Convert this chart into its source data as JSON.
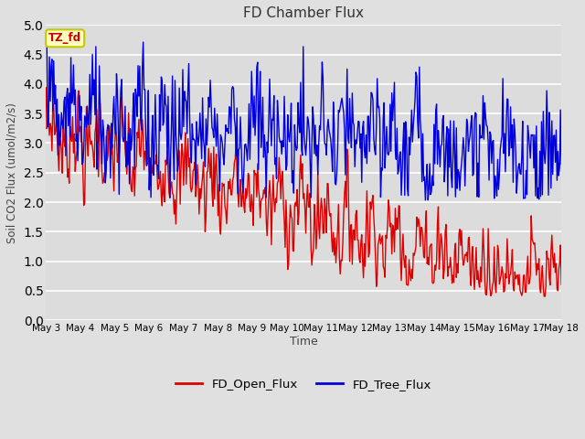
{
  "title": "FD Chamber Flux",
  "xlabel": "Time",
  "ylabel": "Soil CO2 Flux (umol/m2/s)",
  "ylim": [
    0.0,
    5.0
  ],
  "yticks": [
    0.0,
    0.5,
    1.0,
    1.5,
    2.0,
    2.5,
    3.0,
    3.5,
    4.0,
    4.5,
    5.0
  ],
  "background_color": "#e0e0e0",
  "plot_bg_color": "#dcdcdc",
  "grid_color": "white",
  "red_color": "#dd0000",
  "blue_color": "#0000dd",
  "legend_labels": [
    "FD_Open_Flux",
    "FD_Tree_Flux"
  ],
  "annotation_text": "TZ_fd",
  "annotation_bg": "#ffffc0",
  "annotation_border": "#c8c800",
  "x_tick_labels": [
    "May 3",
    "May 4",
    "May 5",
    "May 6",
    "May 7",
    "May 8",
    "May 9",
    "May 10",
    "May 11",
    "May 12",
    "May 13",
    "May 14",
    "May 15",
    "May 16",
    "May 17",
    "May 18"
  ],
  "n_points": 600,
  "seed": 7
}
